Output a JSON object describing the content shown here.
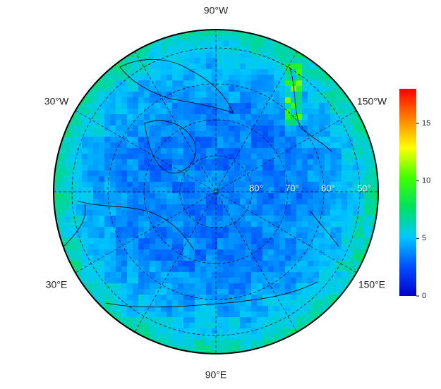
{
  "map": {
    "longitude_labels": [
      "90°W",
      "150°W",
      "150°E",
      "90°E",
      "30°E",
      "30°W"
    ],
    "latitude_labels": [
      {
        "value": 80,
        "label": "80°"
      },
      {
        "value": 70,
        "label": "70°"
      },
      {
        "value": 60,
        "label": "60°"
      },
      {
        "value": 50,
        "label": "50°"
      }
    ]
  },
  "colorbar": {
    "range": [
      0,
      18
    ],
    "ticks": [
      0,
      5,
      10,
      15
    ],
    "colormap": [
      "#0000c8",
      "#0050ff",
      "#00c8ff",
      "#00e060",
      "#40ff00",
      "#ffff00",
      "#ff8000",
      "#ff0000"
    ]
  }
}
